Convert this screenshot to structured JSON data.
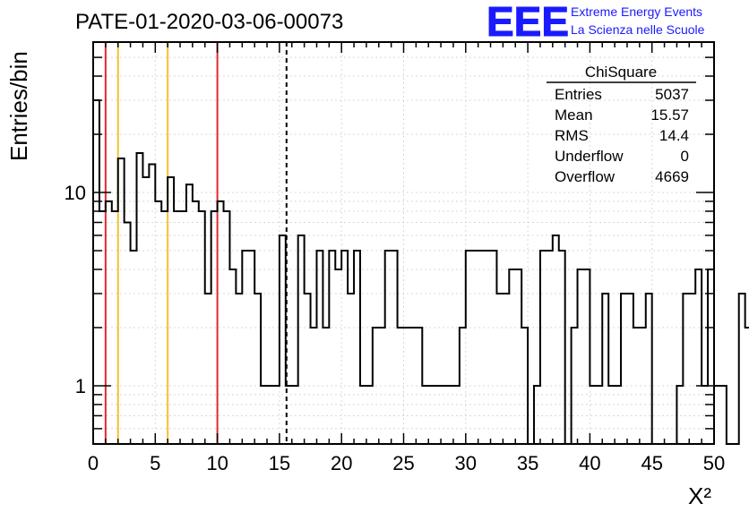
{
  "header": {
    "run_title": "PATE-01-2020-03-06-00073",
    "logo_text": "EEE",
    "logo_line1": "Extreme Energy Events",
    "logo_line2": "La Scienza nelle Scuole",
    "logo_color": "#1a1aff"
  },
  "stats_box": {
    "title": "ChiSquare",
    "rows": [
      {
        "label": "Entries",
        "value": "5037"
      },
      {
        "label": "Mean",
        "value": "15.57"
      },
      {
        "label": "RMS",
        "value": "14.4"
      },
      {
        "label": "Underflow",
        "value": "0"
      },
      {
        "label": "Overflow",
        "value": "4669"
      }
    ]
  },
  "chart_data": {
    "type": "bar",
    "histogram": "step",
    "title": "PATE-01-2020-03-06-00073",
    "xlabel": "X²",
    "ylabel": "Entries/bin",
    "xlim": [
      0,
      50
    ],
    "ylim": [
      0.5,
      60
    ],
    "y_scale": "log",
    "bin_width": 0.5,
    "x_ticks": [
      "0",
      "5",
      "10",
      "15",
      "20",
      "25",
      "30",
      "35",
      "40",
      "45",
      "50"
    ],
    "y_ticks": [
      "1",
      "10"
    ],
    "values": [
      30,
      8,
      9,
      8,
      15,
      7,
      5,
      16,
      12,
      14,
      9,
      8,
      12,
      8,
      8,
      11,
      9,
      8,
      3,
      8,
      9,
      8,
      4,
      3,
      5,
      5,
      3,
      1,
      1,
      1,
      6,
      1,
      1,
      6,
      3,
      2,
      5,
      2,
      5,
      4,
      5,
      3,
      5,
      1,
      1,
      2,
      2,
      5,
      5,
      2,
      2,
      2,
      2,
      1,
      1,
      1,
      1,
      1,
      1,
      2,
      5,
      5,
      5,
      5,
      5,
      3,
      3,
      4,
      4,
      2,
      0.4,
      1,
      5,
      5,
      6,
      5,
      0.4,
      2,
      4,
      4,
      1,
      1,
      3,
      1,
      1,
      3,
      3,
      2,
      2,
      3,
      0.4,
      0.4,
      0.4,
      0.4,
      1,
      3,
      3,
      4,
      1,
      4,
      1,
      1,
      0.4,
      0.4,
      3,
      2,
      0.4,
      0.4,
      1,
      1,
      0.4,
      1,
      1,
      0.4,
      2,
      1,
      0.4,
      1,
      0.4,
      1,
      1,
      3,
      3,
      3,
      4,
      2,
      1,
      1,
      3,
      1,
      2,
      3,
      4,
      3,
      2,
      1,
      1,
      1,
      1,
      2,
      2
    ],
    "reference_lines": [
      {
        "x": 1,
        "color": "#e3292e",
        "style": "solid"
      },
      {
        "x": 2,
        "color": "#f2c12e",
        "style": "solid"
      },
      {
        "x": 6,
        "color": "#f2c12e",
        "style": "solid"
      },
      {
        "x": 10,
        "color": "#e3292e",
        "style": "solid"
      },
      {
        "x": 15.57,
        "color": "#000000",
        "style": "dashed"
      }
    ]
  }
}
